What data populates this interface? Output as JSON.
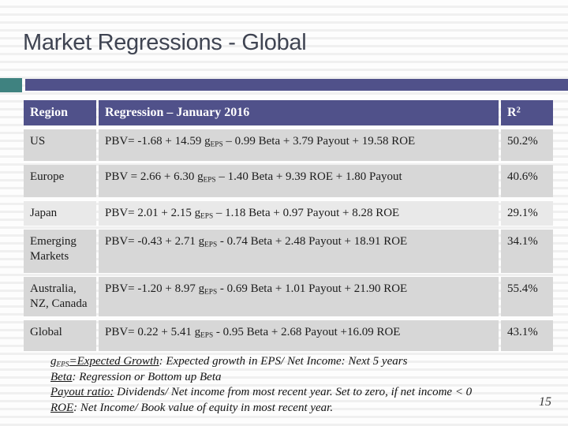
{
  "slide": {
    "title": "Market Regressions - Global",
    "page_number": "15"
  },
  "accent_colors": {
    "teal_square": "#3f8280",
    "purple_bar": "#50518a",
    "header_bg": "#50518a",
    "row_bg": "#d7d7d7",
    "row_bg_light": "#e9e9e9",
    "title_color": "#3f4452"
  },
  "table": {
    "headers": {
      "region": "Region",
      "regression": "Regression – January 2016",
      "r2_base": "R",
      "r2_sup": "2"
    },
    "rows": [
      {
        "region": "US",
        "eq_pre": "PBV= -1.68 + 14.59 g",
        "eq_sub": "EPS",
        "eq_post": " – 0.99 Beta + 3.79 Payout + 19.58 ROE",
        "r2": "50.2%"
      },
      {
        "region": "Europe",
        "eq_pre": "PBV = 2.66 + 6.30 g",
        "eq_sub": "EPS",
        "eq_post": " – 1.40 Beta + 9.39 ROE + 1.80 Payout",
        "r2": "40.6%"
      },
      {
        "region": "Japan",
        "eq_pre": "PBV= 2.01 + 2.15 g",
        "eq_sub": "EPS",
        "eq_post": " – 1.18 Beta + 0.97 Payout + 8.28 ROE",
        "r2": "29.1%"
      },
      {
        "region": "Emerging Markets",
        "eq_pre": "PBV= -0.43 + 2.71 g",
        "eq_sub": "EPS",
        "eq_post": " - 0.74 Beta + 2.48 Payout + 18.91 ROE",
        "r2": "34.1%"
      },
      {
        "region": "Australia, NZ, Canada",
        "eq_pre": "PBV= -1.20 + 8.97 g",
        "eq_sub": "EPS",
        "eq_post": " - 0.69 Beta + 1.01 Payout + 21.90 ROE",
        "r2": "55.4%"
      },
      {
        "region": "Global",
        "eq_pre": "PBV= 0.22 + 5.41 g",
        "eq_sub": "EPS",
        "eq_post": " - 0.95 Beta + 2.68 Payout +16.09 ROE",
        "r2": "43.1%"
      }
    ]
  },
  "footnotes": [
    {
      "lead_pre": "g",
      "lead_sub": "EPS",
      "lead_post": "=Expected Growth",
      "rest": ": Expected growth in EPS/ Net Income: Next 5 years"
    },
    {
      "lead_pre": "Beta",
      "lead_sub": "",
      "lead_post": "",
      "rest": ": Regression or Bottom up Beta"
    },
    {
      "lead_pre": "Payout ratio:",
      "lead_sub": "",
      "lead_post": "",
      "rest": " Dividends/ Net income from most recent year. Set to zero, if net income < 0"
    },
    {
      "lead_pre": "ROE",
      "lead_sub": "",
      "lead_post": "",
      "rest": ": Net Income/ Book value of equity in most recent year."
    }
  ]
}
